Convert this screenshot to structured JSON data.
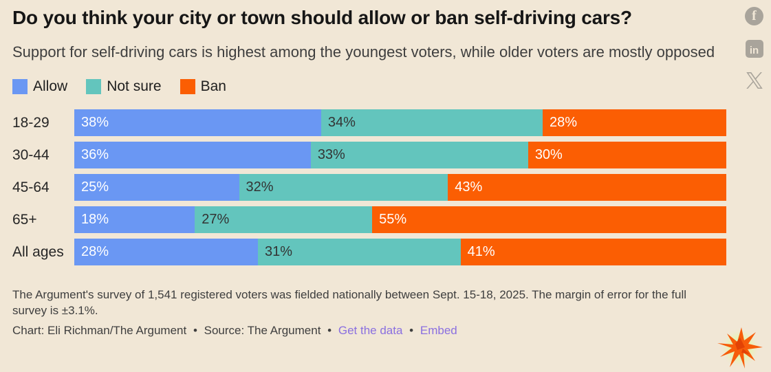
{
  "header": {
    "title": "Do you think your city or town should allow or ban self-driving cars?",
    "subtitle": "Support for self-driving cars is highest among the youngest voters, while older voters are mostly opposed"
  },
  "share": {
    "icons": [
      "facebook-icon",
      "linkedin-icon",
      "x-icon"
    ],
    "facebook_glyph": "f",
    "linkedin_glyph": "in",
    "icon_color": "#a9a49b"
  },
  "legend": [
    {
      "label": "Allow",
      "color": "#6a97f3"
    },
    {
      "label": "Not sure",
      "color": "#63c5bd"
    },
    {
      "label": "Ban",
      "color": "#fb5e03"
    }
  ],
  "chart_data": {
    "type": "bar",
    "stacked": true,
    "orientation": "horizontal",
    "normalized_to_100": true,
    "grid": false,
    "legend_position": "top-left",
    "categories": [
      "18-29",
      "30-44",
      "45-64",
      "65+",
      "All ages"
    ],
    "series": [
      {
        "name": "Allow",
        "color": "#6a97f3",
        "label_color": "#ffffff",
        "values": [
          38,
          36,
          25,
          18,
          28
        ]
      },
      {
        "name": "Not sure",
        "color": "#63c5bd",
        "label_color": "#333333",
        "values": [
          34,
          33,
          32,
          27,
          31
        ]
      },
      {
        "name": "Ban",
        "color": "#fb5e03",
        "label_color": "#ffffff",
        "values": [
          28,
          30,
          43,
          55,
          41
        ]
      }
    ],
    "value_suffix": "%",
    "title": "Do you think your city or town should allow or ban self-driving cars?",
    "xlabel": "",
    "ylabel": ""
  },
  "footer": {
    "notes": "The Argument's survey of 1,541 registered voters was fielded nationally between Sept. 15-18, 2025. The margin of error for the full survey is ±3.1%.",
    "byline": {
      "credit": "Chart: Eli Richman/The Argument",
      "source": "Source: The Argument",
      "separator": "•",
      "links": [
        "Get the data",
        "Embed"
      ]
    },
    "accent_link_color": "#8a6fe0"
  },
  "colors": {
    "background": "#f1e7d6",
    "title_text": "#161616",
    "body_text": "#3e3e3e",
    "logo_orange": "#f75c0a",
    "logo_glow": "#dff0a2"
  }
}
